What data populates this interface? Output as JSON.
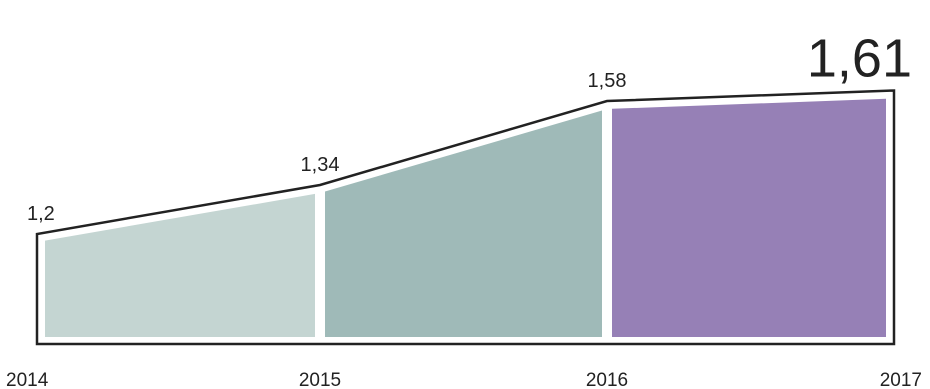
{
  "chart_data": {
    "type": "area",
    "categories": [
      "2014",
      "2015",
      "2016",
      "2017"
    ],
    "values": [
      1.2,
      1.34,
      1.58,
      1.61
    ],
    "value_labels": [
      "1,2",
      "1,34",
      "1,58",
      "1,61"
    ],
    "highlight_index": 3,
    "colors": {
      "segments": [
        "#c4d5d2",
        "#9fbab8",
        "#9680b6"
      ],
      "outline": "#222222",
      "background": "#ffffff"
    },
    "grid": false,
    "legend": "none"
  }
}
